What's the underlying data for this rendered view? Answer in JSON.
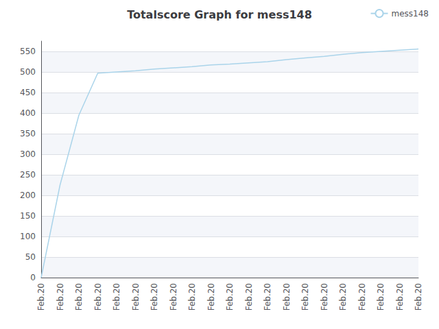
{
  "chart_data": {
    "type": "line",
    "title": "Totalscore Graph for mess148",
    "categories": [
      "Feb.20",
      "Feb.20",
      "Feb.20",
      "Feb.20",
      "Feb.20",
      "Feb.20",
      "Feb.20",
      "Feb.20",
      "Feb.20",
      "Feb.20",
      "Feb.20",
      "Feb.20",
      "Feb.20",
      "Feb.20",
      "Feb.20",
      "Feb.20",
      "Feb.20",
      "Feb.20",
      "Feb.20",
      "Feb.20",
      "Feb.20"
    ],
    "series": [
      {
        "name": "mess148",
        "color": "#aad4ea",
        "values": [
          0,
          225,
          395,
          497,
          500,
          503,
          507,
          510,
          513,
          517,
          519,
          522,
          525,
          530,
          534,
          538,
          543,
          547,
          550,
          553,
          556
        ]
      }
    ],
    "ylim": [
      0,
      575
    ],
    "yticks": [
      0,
      50,
      100,
      150,
      200,
      250,
      300,
      350,
      400,
      450,
      500,
      550
    ],
    "grid": true,
    "legend": "upper right"
  }
}
